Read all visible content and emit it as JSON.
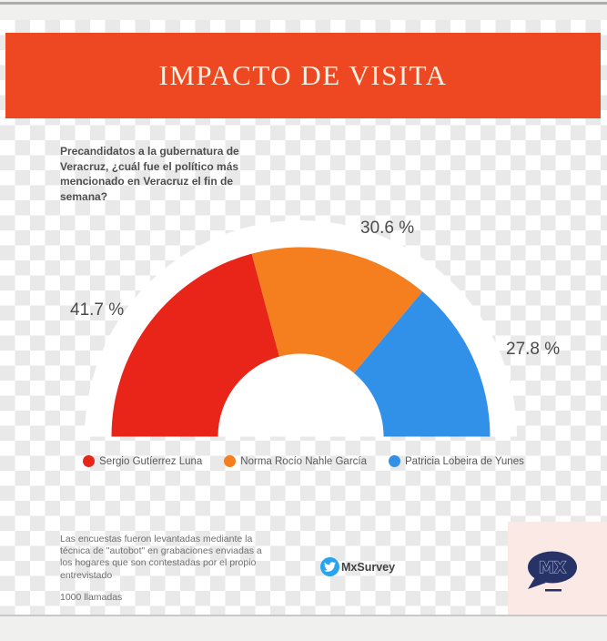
{
  "banner": {
    "title": "IMPACTO DE VISITA",
    "bg_color": "#ee4823",
    "text_color": "#f9f0e1"
  },
  "question": "Precandidatos a la gubernatura de\nVeracruz, ¿cuál fue el político más\nmencionado en Veracruz el fin de\nsemana?",
  "chart_data": {
    "type": "pie",
    "subtype": "semicircle-donut",
    "title": "IMPACTO DE VISITA",
    "categories": [
      "Sergio Gutíerrez Luna",
      "Norma Rocío Nahle García",
      "Patricia Lobeira de Yunes"
    ],
    "values": [
      41.7,
      30.6,
      27.8
    ],
    "value_labels": [
      "41.7 %",
      "30.6 %",
      "27.8 %"
    ],
    "colors": [
      "#e92418",
      "#f57e1e",
      "#3190e7"
    ],
    "unit": "%",
    "legend_position": "bottom",
    "background_disc_color": "#ffffff"
  },
  "footer": {
    "methodology": "Las encuestas fueron levantadas mediante la\ntécnica de \"autobot\" en grabaciones enviadas a\nlos hogares que son contestadas por el propio\nentrevistado",
    "sample_size": "1000 llamadas",
    "twitter_handle": "MxSurvey",
    "twitter_color": "#2aa3ee"
  },
  "logo": {
    "text": "MX",
    "bubble_color": "#273266",
    "bg_color": "#fbe9e6",
    "outline_color": "#9aa5c8"
  }
}
